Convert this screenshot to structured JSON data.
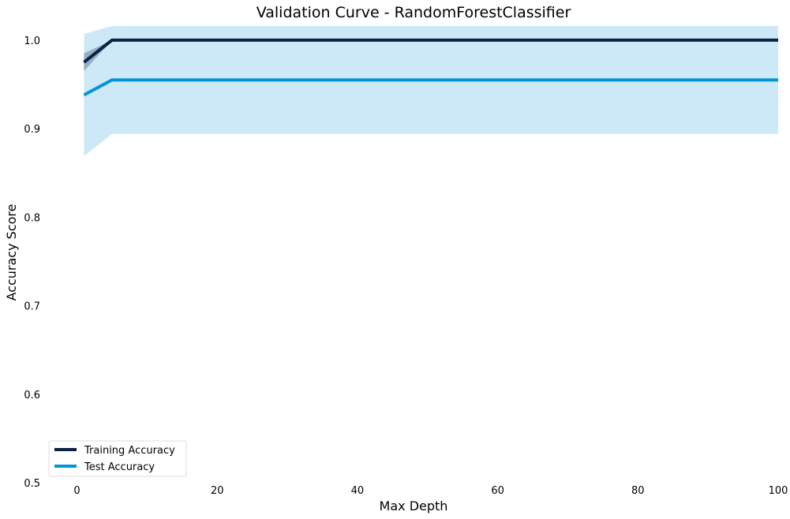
{
  "chart_data": {
    "type": "line",
    "title": "Validation Curve - RandomForestClassifier",
    "xlabel": "Max Depth",
    "ylabel": "Accuracy Score",
    "xlim": [
      -4,
      100
    ],
    "ylim": [
      0.5,
      1.015
    ],
    "xticks": [
      0,
      20,
      40,
      60,
      80,
      100
    ],
    "yticks": [
      0.5,
      0.6,
      0.7,
      0.8,
      0.9,
      1.0
    ],
    "grid": false,
    "legend_position": "lower-left",
    "x": [
      1,
      5,
      10,
      20,
      50,
      100
    ],
    "series": [
      {
        "name": "Training Accuracy",
        "color": "#0a2342",
        "band_color": "#7f9bb3",
        "values": [
          0.975,
          1.0,
          1.0,
          1.0,
          1.0,
          1.0
        ],
        "lower": [
          0.965,
          1.0,
          1.0,
          1.0,
          1.0,
          1.0
        ],
        "upper": [
          0.985,
          1.0,
          1.0,
          1.0,
          1.0,
          1.0
        ]
      },
      {
        "name": "Test Accuracy",
        "color": "#0096d6",
        "band_color": "#cde9f7",
        "values": [
          0.938,
          0.955,
          0.955,
          0.955,
          0.955,
          0.955
        ],
        "lower": [
          0.869,
          0.894,
          0.894,
          0.894,
          0.894,
          0.894
        ],
        "upper": [
          1.007,
          1.016,
          1.016,
          1.016,
          1.016,
          1.016
        ]
      }
    ]
  }
}
